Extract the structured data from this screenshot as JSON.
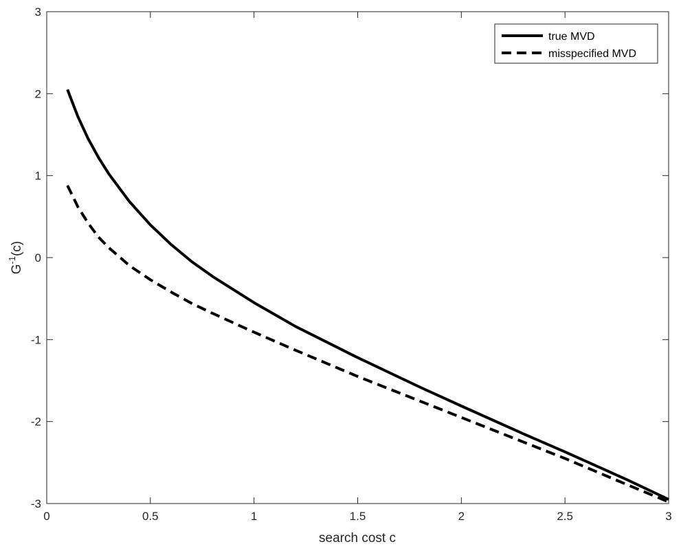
{
  "chart_data": {
    "type": "line",
    "xlabel": "search cost c",
    "ylabel": "G-1(c)",
    "ylabel_parts": {
      "base": "G",
      "sup": "-1",
      "rest": "(c)"
    },
    "xlim": [
      0,
      3
    ],
    "ylim": [
      -3,
      3
    ],
    "x_ticks": [
      0,
      0.5,
      1,
      1.5,
      2,
      2.5,
      3
    ],
    "x_tick_labels": [
      "0",
      "0.5",
      "1",
      "1.5",
      "2",
      "2.5",
      "3"
    ],
    "y_ticks": [
      -3,
      -2,
      -1,
      0,
      1,
      2,
      3
    ],
    "y_tick_labels": [
      "-3",
      "-2",
      "-1",
      "0",
      "1",
      "2",
      "3"
    ],
    "grid": false,
    "legend_position": "top-right",
    "series": [
      {
        "name": "true MVD",
        "style": "solid",
        "color": "#000000",
        "x": [
          0.1,
          0.15,
          0.2,
          0.25,
          0.3,
          0.4,
          0.5,
          0.6,
          0.7,
          0.8,
          1.0,
          1.2,
          1.5,
          1.8,
          2.0,
          2.3,
          2.5,
          2.8,
          3.0
        ],
        "y": [
          2.05,
          1.72,
          1.45,
          1.22,
          1.02,
          0.68,
          0.4,
          0.16,
          -0.05,
          -0.23,
          -0.55,
          -0.84,
          -1.22,
          -1.58,
          -1.81,
          -2.15,
          -2.37,
          -2.71,
          -2.95
        ]
      },
      {
        "name": "misspecified MVD",
        "style": "dashed",
        "color": "#000000",
        "x": [
          0.1,
          0.15,
          0.2,
          0.25,
          0.3,
          0.4,
          0.5,
          0.6,
          0.7,
          0.8,
          1.0,
          1.2,
          1.5,
          1.8,
          2.0,
          2.3,
          2.5,
          2.8,
          3.0
        ],
        "y": [
          0.88,
          0.62,
          0.42,
          0.25,
          0.12,
          -0.1,
          -0.27,
          -0.42,
          -0.56,
          -0.68,
          -0.91,
          -1.13,
          -1.45,
          -1.75,
          -1.95,
          -2.25,
          -2.45,
          -2.77,
          -2.98
        ]
      }
    ]
  }
}
